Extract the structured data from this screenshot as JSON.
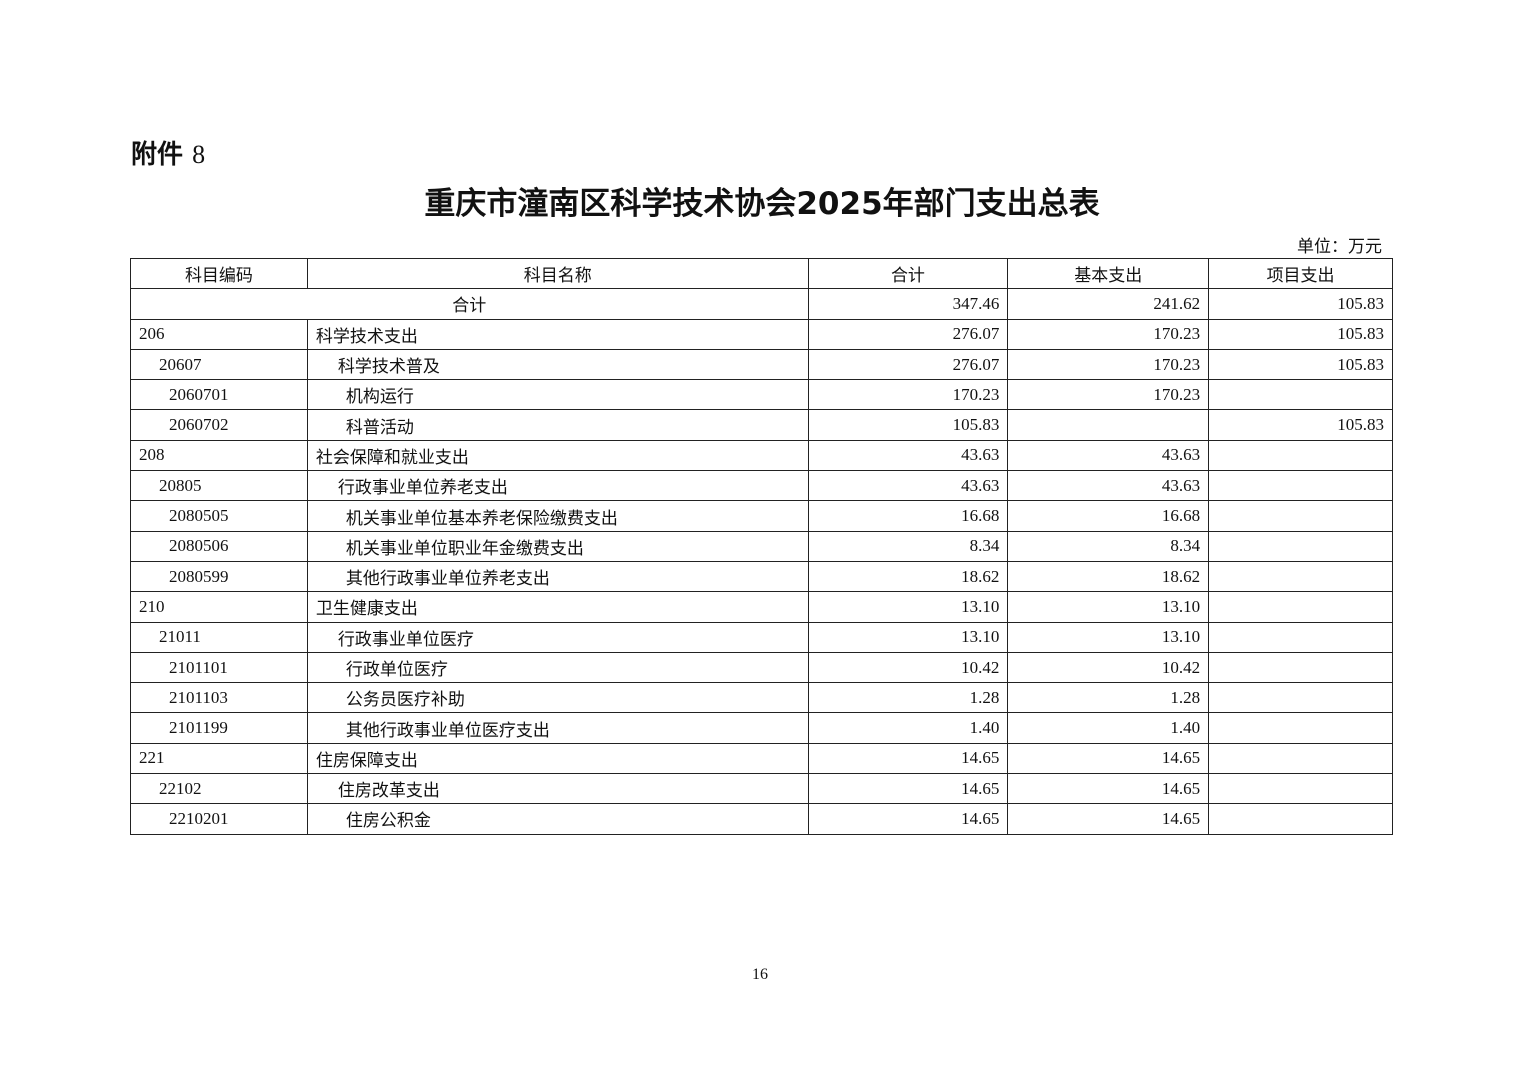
{
  "attachment": {
    "label": "附件",
    "number": "8"
  },
  "title": "重庆市潼南区科学技术协会2025年部门支出总表",
  "unit": "单位：万元",
  "table": {
    "headers": [
      "科目编码",
      "科目名称",
      "合计",
      "基本支出",
      "项目支出"
    ],
    "total_row": {
      "label": "合计",
      "total": "347.46",
      "basic": "241.62",
      "project": "105.83"
    },
    "rows": [
      {
        "code": "206",
        "name": "科学技术支出",
        "level": 1,
        "total": "276.07",
        "basic": "170.23",
        "project": "105.83"
      },
      {
        "code": "20607",
        "name": "科学技术普及",
        "level": 2,
        "total": "276.07",
        "basic": "170.23",
        "project": "105.83"
      },
      {
        "code": "2060701",
        "name": "机构运行",
        "level": 3,
        "total": "170.23",
        "basic": "170.23",
        "project": ""
      },
      {
        "code": "2060702",
        "name": "科普活动",
        "level": 3,
        "total": "105.83",
        "basic": "",
        "project": "105.83"
      },
      {
        "code": "208",
        "name": "社会保障和就业支出",
        "level": 1,
        "total": "43.63",
        "basic": "43.63",
        "project": ""
      },
      {
        "code": "20805",
        "name": "行政事业单位养老支出",
        "level": 2,
        "total": "43.63",
        "basic": "43.63",
        "project": ""
      },
      {
        "code": "2080505",
        "name": "机关事业单位基本养老保险缴费支出",
        "level": 3,
        "total": "16.68",
        "basic": "16.68",
        "project": ""
      },
      {
        "code": "2080506",
        "name": "机关事业单位职业年金缴费支出",
        "level": 3,
        "total": "8.34",
        "basic": "8.34",
        "project": ""
      },
      {
        "code": "2080599",
        "name": "其他行政事业单位养老支出",
        "level": 3,
        "total": "18.62",
        "basic": "18.62",
        "project": ""
      },
      {
        "code": "210",
        "name": "卫生健康支出",
        "level": 1,
        "total": "13.10",
        "basic": "13.10",
        "project": ""
      },
      {
        "code": "21011",
        "name": "行政事业单位医疗",
        "level": 2,
        "total": "13.10",
        "basic": "13.10",
        "project": ""
      },
      {
        "code": "2101101",
        "name": "行政单位医疗",
        "level": 3,
        "total": "10.42",
        "basic": "10.42",
        "project": ""
      },
      {
        "code": "2101103",
        "name": "公务员医疗补助",
        "level": 3,
        "total": "1.28",
        "basic": "1.28",
        "project": ""
      },
      {
        "code": "2101199",
        "name": "其他行政事业单位医疗支出",
        "level": 3,
        "total": "1.40",
        "basic": "1.40",
        "project": ""
      },
      {
        "code": "221",
        "name": "住房保障支出",
        "level": 1,
        "total": "14.65",
        "basic": "14.65",
        "project": ""
      },
      {
        "code": "22102",
        "name": "住房改革支出",
        "level": 2,
        "total": "14.65",
        "basic": "14.65",
        "project": ""
      },
      {
        "code": "2210201",
        "name": "住房公积金",
        "level": 3,
        "total": "14.65",
        "basic": "14.65",
        "project": ""
      }
    ]
  },
  "page_number": "16"
}
